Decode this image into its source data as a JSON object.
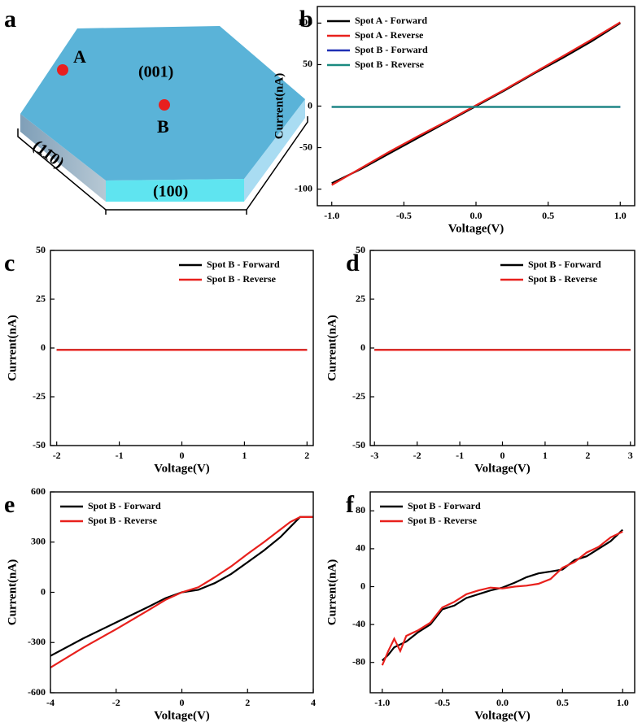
{
  "diagram": {
    "panel": "a",
    "faces": [
      "(001)",
      "(11̄0)",
      "(100)"
    ],
    "points": [
      "A",
      "B"
    ]
  },
  "chart_data": [
    {
      "type": "line",
      "panel": "b",
      "xlabel": "Voltage(V)",
      "ylabel": "Current(nA)",
      "legend": "upper left",
      "xlim": [
        -1.1,
        1.1
      ],
      "ylim": [
        -120,
        120
      ],
      "xticks": [
        {
          "value": -1,
          "label": "-1.0"
        },
        {
          "value": -0.5,
          "label": "-0.5"
        },
        {
          "value": 0,
          "label": "0.0"
        },
        {
          "value": 0.5,
          "label": "0.5"
        },
        {
          "value": 1,
          "label": "1.0"
        }
      ],
      "yticks": [
        -100,
        -50,
        0,
        50,
        100
      ],
      "series": [
        {
          "name": "Spot A - Forward",
          "color": "#000000",
          "x": [
            -1,
            -0.8,
            -0.6,
            -0.4,
            -0.2,
            0,
            0.2,
            0.4,
            0.6,
            0.8,
            1
          ],
          "values": [
            -93,
            -76,
            -57,
            -38,
            -19,
            0,
            19,
            39,
            58,
            78,
            100
          ]
        },
        {
          "name": "Spot A - Reverse",
          "color": "#e8201c",
          "x": [
            -1,
            -0.8,
            -0.6,
            -0.4,
            -0.2,
            0,
            0.2,
            0.4,
            0.6,
            0.8,
            1
          ],
          "values": [
            -95,
            -75,
            -55,
            -36,
            -18,
            1,
            20,
            40,
            60,
            80,
            101
          ]
        },
        {
          "name": "Spot B - Forward",
          "color": "#1f2fb4",
          "x": [
            -1,
            0,
            1
          ],
          "values": [
            -1,
            -1,
            -1
          ]
        },
        {
          "name": "Spot B - Reverse",
          "color": "#1a8a80",
          "x": [
            -1,
            0,
            1
          ],
          "values": [
            -1,
            -1,
            -1
          ]
        }
      ]
    },
    {
      "type": "line",
      "panel": "c",
      "xlabel": "Voltage(V)",
      "ylabel": "Current(nA)",
      "legend": "upper right",
      "xlim": [
        -2.1,
        2.1
      ],
      "ylim": [
        -50,
        50
      ],
      "xticks": [
        -2,
        -1,
        0,
        1,
        2
      ],
      "yticks": [
        -50,
        -25,
        0,
        25,
        50
      ],
      "series": [
        {
          "name": "Spot B - Forward",
          "color": "#000000",
          "x": [
            -2,
            0,
            2
          ],
          "values": [
            -1,
            -1,
            -1
          ]
        },
        {
          "name": "Spot B - Reverse",
          "color": "#e8201c",
          "x": [
            -2,
            0,
            2
          ],
          "values": [
            -1,
            -1,
            -1
          ]
        }
      ]
    },
    {
      "type": "line",
      "panel": "d",
      "xlabel": "Voltage(V)",
      "ylabel": "Current(nA)",
      "legend": "upper right",
      "xlim": [
        -3.1,
        3.1
      ],
      "ylim": [
        -50,
        50
      ],
      "xticks": [
        -3,
        -2,
        -1,
        0,
        1,
        2,
        3
      ],
      "yticks": [
        -50,
        -25,
        0,
        25,
        50
      ],
      "series": [
        {
          "name": "Spot B - Forward",
          "color": "#000000",
          "x": [
            -3,
            0,
            3
          ],
          "values": [
            -1,
            -1,
            -1
          ]
        },
        {
          "name": "Spot B - Reverse",
          "color": "#e8201c",
          "x": [
            -3,
            0,
            3
          ],
          "values": [
            -1,
            -1,
            -1
          ]
        }
      ]
    },
    {
      "type": "line",
      "panel": "e",
      "xlabel": "Voltage(V)",
      "ylabel": "Current(nA)",
      "legend": "upper left",
      "xlim": [
        -4,
        4
      ],
      "ylim": [
        -600,
        600
      ],
      "xticks": [
        -4,
        -2,
        0,
        2,
        4
      ],
      "yticks": [
        -600,
        -300,
        0,
        300,
        600
      ],
      "series": [
        {
          "name": "Spot B - Forward",
          "color": "#000000",
          "x": [
            -4,
            -3,
            -2,
            -1,
            -0.5,
            0,
            0.5,
            1,
            1.5,
            2,
            2.5,
            3,
            3.3,
            3.6,
            4
          ],
          "values": [
            -380,
            -275,
            -180,
            -85,
            -35,
            0,
            15,
            55,
            110,
            180,
            250,
            330,
            390,
            450,
            450
          ]
        },
        {
          "name": "Spot B - Reverse",
          "color": "#e8201c",
          "x": [
            -4,
            -3,
            -2,
            -1,
            -0.5,
            0,
            0.5,
            1,
            1.5,
            2,
            2.5,
            3,
            3.3,
            3.6,
            4
          ],
          "values": [
            -450,
            -330,
            -220,
            -105,
            -45,
            0,
            30,
            90,
            155,
            230,
            300,
            375,
            420,
            450,
            450
          ]
        }
      ]
    },
    {
      "type": "line",
      "panel": "f",
      "xlabel": "Voltage(V)",
      "ylabel": "Current(nA)",
      "legend": "upper left",
      "xlim": [
        -1.1,
        1.1
      ],
      "ylim": [
        -112,
        100
      ],
      "xticks": [
        {
          "value": -1,
          "label": "-1.0"
        },
        {
          "value": -0.5,
          "label": "-0.5"
        },
        {
          "value": 0,
          "label": "0.0"
        },
        {
          "value": 0.5,
          "label": "0.5"
        },
        {
          "value": 1,
          "label": "1.0"
        }
      ],
      "yticks": [
        -80,
        -40,
        0,
        40,
        80
      ],
      "series": [
        {
          "name": "Spot B - Forward",
          "color": "#000000",
          "x": [
            -1,
            -0.95,
            -0.9,
            -0.8,
            -0.7,
            -0.6,
            -0.5,
            -0.4,
            -0.3,
            -0.2,
            -0.1,
            0,
            0.1,
            0.2,
            0.3,
            0.4,
            0.5,
            0.6,
            0.7,
            0.8,
            0.9,
            1
          ],
          "values": [
            -78,
            -72,
            -64,
            -58,
            -48,
            -40,
            -24,
            -20,
            -12,
            -8,
            -4,
            -1,
            4,
            10,
            14,
            16,
            18,
            28,
            32,
            40,
            48,
            60
          ]
        },
        {
          "name": "Spot B - Reverse",
          "color": "#e8201c",
          "x": [
            -1,
            -0.95,
            -0.9,
            -0.85,
            -0.8,
            -0.7,
            -0.6,
            -0.5,
            -0.4,
            -0.3,
            -0.2,
            -0.1,
            0,
            0.1,
            0.2,
            0.3,
            0.4,
            0.5,
            0.6,
            0.7,
            0.8,
            0.9,
            1
          ],
          "values": [
            -83,
            -68,
            -55,
            -68,
            -52,
            -46,
            -38,
            -22,
            -16,
            -8,
            -4,
            -1,
            -2,
            0,
            1,
            3,
            8,
            20,
            26,
            36,
            42,
            52,
            58
          ]
        }
      ]
    }
  ]
}
